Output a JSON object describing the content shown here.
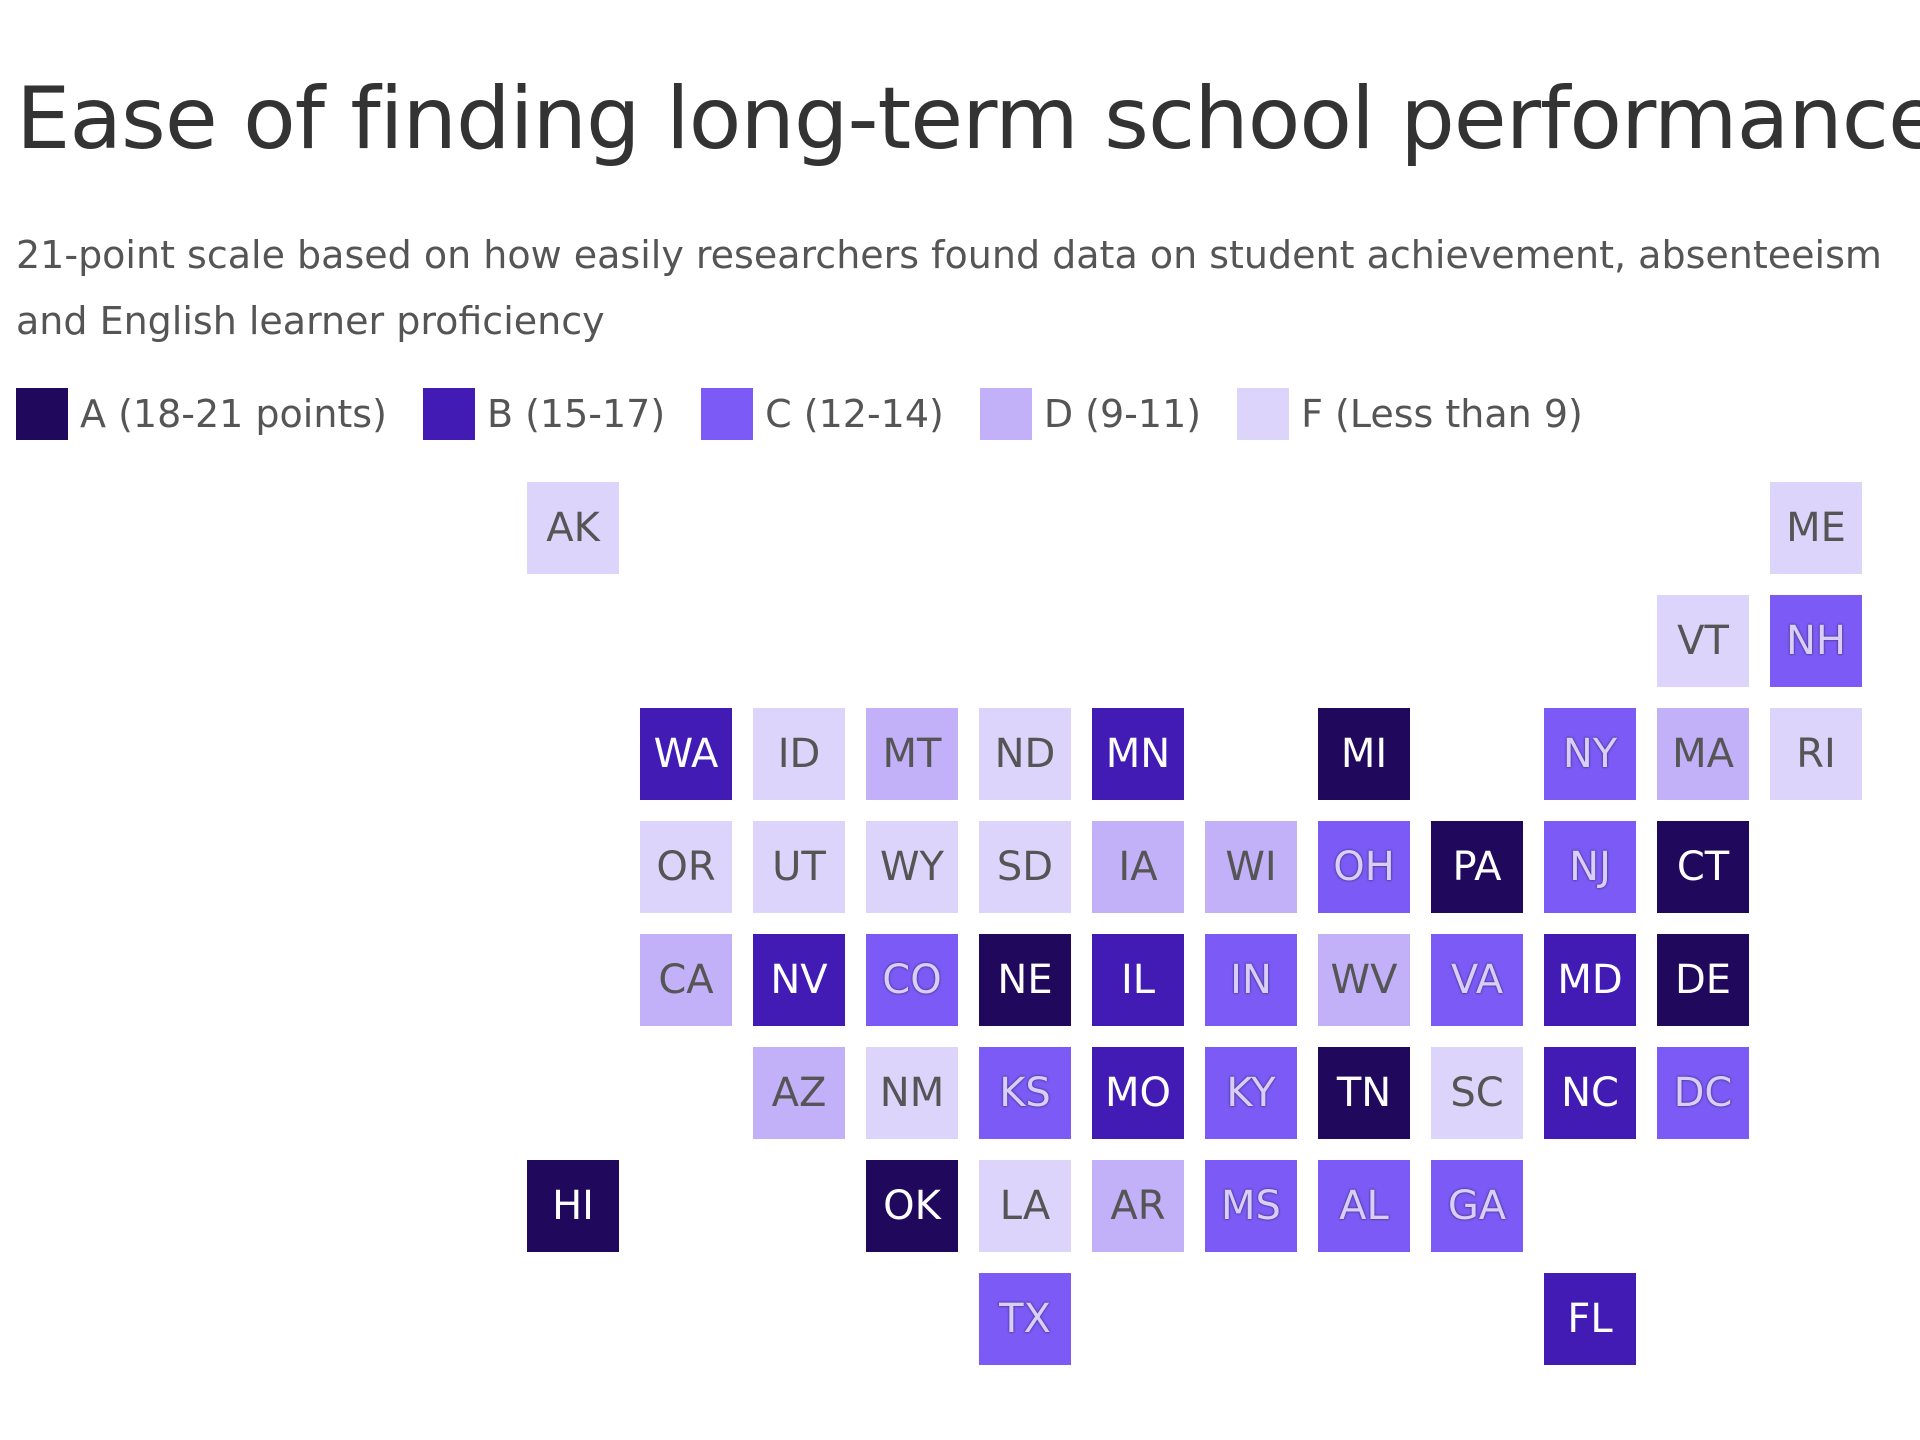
{
  "title": "Ease of finding long-term school performance data",
  "subtitle": "21-point scale based on how easily researchers found data on student achievement, absenteeism\nand English learner proficiency",
  "legend": [
    {
      "grade": "A",
      "label": "A (18-21 points)",
      "color": "#20085c"
    },
    {
      "grade": "B",
      "label": "B (15-17)",
      "color": "#411bb4"
    },
    {
      "grade": "C",
      "label": "C (12-14)",
      "color": "#7b5af5"
    },
    {
      "grade": "D",
      "label": "D (9-11)",
      "color": "#c2b0f9"
    },
    {
      "grade": "F",
      "label": "F (Less than 9)",
      "color": "#ddd4fc"
    }
  ],
  "map_data": {
    "type": "tile-grid",
    "states": [
      {
        "abbr": "AK",
        "grade": "F",
        "col": 0,
        "row": 0
      },
      {
        "abbr": "ME",
        "grade": "F",
        "col": 11,
        "row": 0
      },
      {
        "abbr": "VT",
        "grade": "F",
        "col": 10,
        "row": 1
      },
      {
        "abbr": "NH",
        "grade": "C",
        "col": 11,
        "row": 1
      },
      {
        "abbr": "WA",
        "grade": "B",
        "col": 1,
        "row": 2
      },
      {
        "abbr": "ID",
        "grade": "F",
        "col": 2,
        "row": 2
      },
      {
        "abbr": "MT",
        "grade": "D",
        "col": 3,
        "row": 2
      },
      {
        "abbr": "ND",
        "grade": "F",
        "col": 4,
        "row": 2
      },
      {
        "abbr": "MN",
        "grade": "B",
        "col": 5,
        "row": 2
      },
      {
        "abbr": "MI",
        "grade": "A",
        "col": 7,
        "row": 2
      },
      {
        "abbr": "NY",
        "grade": "C",
        "col": 9,
        "row": 2
      },
      {
        "abbr": "MA",
        "grade": "D",
        "col": 10,
        "row": 2
      },
      {
        "abbr": "RI",
        "grade": "F",
        "col": 11,
        "row": 2
      },
      {
        "abbr": "OR",
        "grade": "F",
        "col": 1,
        "row": 3
      },
      {
        "abbr": "UT",
        "grade": "F",
        "col": 2,
        "row": 3
      },
      {
        "abbr": "WY",
        "grade": "F",
        "col": 3,
        "row": 3
      },
      {
        "abbr": "SD",
        "grade": "F",
        "col": 4,
        "row": 3
      },
      {
        "abbr": "IA",
        "grade": "D",
        "col": 5,
        "row": 3
      },
      {
        "abbr": "WI",
        "grade": "D",
        "col": 6,
        "row": 3
      },
      {
        "abbr": "OH",
        "grade": "C",
        "col": 7,
        "row": 3
      },
      {
        "abbr": "PA",
        "grade": "A",
        "col": 8,
        "row": 3
      },
      {
        "abbr": "NJ",
        "grade": "C",
        "col": 9,
        "row": 3
      },
      {
        "abbr": "CT",
        "grade": "A",
        "col": 10,
        "row": 3
      },
      {
        "abbr": "CA",
        "grade": "D",
        "col": 1,
        "row": 4
      },
      {
        "abbr": "NV",
        "grade": "B",
        "col": 2,
        "row": 4
      },
      {
        "abbr": "CO",
        "grade": "C",
        "col": 3,
        "row": 4
      },
      {
        "abbr": "NE",
        "grade": "A",
        "col": 4,
        "row": 4
      },
      {
        "abbr": "IL",
        "grade": "B",
        "col": 5,
        "row": 4
      },
      {
        "abbr": "IN",
        "grade": "C",
        "col": 6,
        "row": 4
      },
      {
        "abbr": "WV",
        "grade": "D",
        "col": 7,
        "row": 4
      },
      {
        "abbr": "VA",
        "grade": "C",
        "col": 8,
        "row": 4
      },
      {
        "abbr": "MD",
        "grade": "B",
        "col": 9,
        "row": 4
      },
      {
        "abbr": "DE",
        "grade": "A",
        "col": 10,
        "row": 4
      },
      {
        "abbr": "AZ",
        "grade": "D",
        "col": 2,
        "row": 5
      },
      {
        "abbr": "NM",
        "grade": "F",
        "col": 3,
        "row": 5
      },
      {
        "abbr": "KS",
        "grade": "C",
        "col": 4,
        "row": 5
      },
      {
        "abbr": "MO",
        "grade": "B",
        "col": 5,
        "row": 5
      },
      {
        "abbr": "KY",
        "grade": "C",
        "col": 6,
        "row": 5
      },
      {
        "abbr": "TN",
        "grade": "A",
        "col": 7,
        "row": 5
      },
      {
        "abbr": "SC",
        "grade": "F",
        "col": 8,
        "row": 5
      },
      {
        "abbr": "NC",
        "grade": "B",
        "col": 9,
        "row": 5
      },
      {
        "abbr": "DC",
        "grade": "C",
        "col": 10,
        "row": 5
      },
      {
        "abbr": "HI",
        "grade": "A",
        "col": 0,
        "row": 6
      },
      {
        "abbr": "OK",
        "grade": "A",
        "col": 3,
        "row": 6
      },
      {
        "abbr": "LA",
        "grade": "F",
        "col": 4,
        "row": 6
      },
      {
        "abbr": "AR",
        "grade": "D",
        "col": 5,
        "row": 6
      },
      {
        "abbr": "MS",
        "grade": "C",
        "col": 6,
        "row": 6
      },
      {
        "abbr": "AL",
        "grade": "C",
        "col": 7,
        "row": 6
      },
      {
        "abbr": "GA",
        "grade": "C",
        "col": 8,
        "row": 6
      },
      {
        "abbr": "TX",
        "grade": "C",
        "col": 4,
        "row": 7
      },
      {
        "abbr": "FL",
        "grade": "B",
        "col": 9,
        "row": 7
      }
    ]
  }
}
